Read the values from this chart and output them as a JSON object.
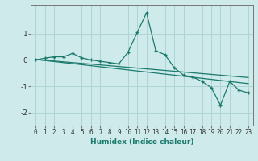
{
  "xlabel": "Humidex (Indice chaleur)",
  "bg_color": "#ceeaea",
  "grid_color": "#aed4d4",
  "line_color": "#1a7a6e",
  "x_data": [
    0,
    1,
    2,
    3,
    4,
    5,
    6,
    7,
    8,
    9,
    10,
    11,
    12,
    13,
    14,
    15,
    16,
    17,
    18,
    19,
    20,
    21,
    22,
    23
  ],
  "y_main": [
    0.0,
    0.07,
    0.12,
    0.12,
    0.25,
    0.08,
    0.0,
    -0.05,
    -0.1,
    -0.15,
    0.3,
    1.05,
    1.8,
    0.35,
    0.2,
    -0.3,
    -0.58,
    -0.65,
    -0.82,
    -1.05,
    -1.72,
    -0.82,
    -1.15,
    -1.25
  ],
  "y_trend1": [
    0.02,
    -0.02,
    -0.06,
    -0.1,
    -0.14,
    -0.18,
    -0.22,
    -0.26,
    -0.3,
    -0.34,
    -0.38,
    -0.42,
    -0.46,
    -0.5,
    -0.54,
    -0.58,
    -0.62,
    -0.66,
    -0.7,
    -0.74,
    -0.78,
    -0.82,
    -0.86,
    -0.9
  ],
  "y_trend2": [
    0.02,
    -0.01,
    -0.04,
    -0.07,
    -0.1,
    -0.13,
    -0.16,
    -0.19,
    -0.22,
    -0.25,
    -0.28,
    -0.31,
    -0.34,
    -0.37,
    -0.4,
    -0.43,
    -0.46,
    -0.49,
    -0.52,
    -0.55,
    -0.58,
    -0.61,
    -0.64,
    -0.67
  ],
  "ylim": [
    -2.5,
    2.1
  ],
  "yticks": [
    -2,
    -1,
    0,
    1
  ],
  "xlim": [
    -0.5,
    23.5
  ],
  "xlabel_fontsize": 6.5,
  "tick_fontsize": 5.5,
  "ytick_fontsize": 6.5
}
